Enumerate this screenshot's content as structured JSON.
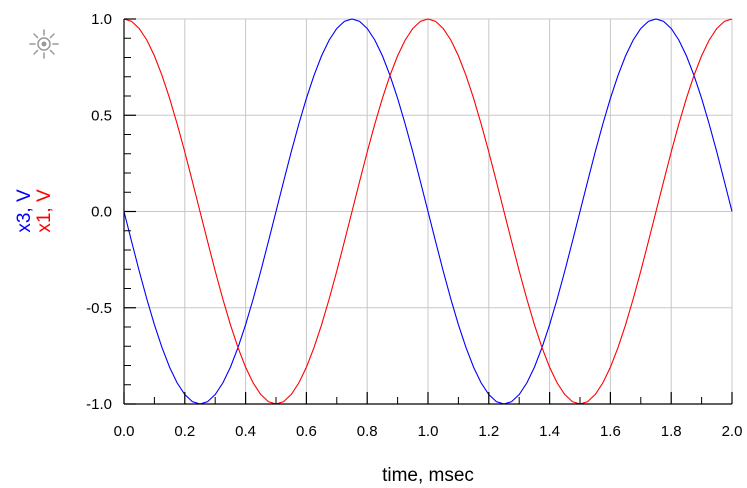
{
  "chart_data": {
    "type": "line",
    "xlabel": "time, msec",
    "ylabels": [
      {
        "text": "x3, V",
        "color": "#0000ff"
      },
      {
        "text": "x1, V",
        "color": "#ff0000"
      }
    ],
    "xlim": [
      0.0,
      2.0
    ],
    "ylim": [
      -1.0,
      1.0
    ],
    "xticks": [
      "0.0",
      "0.2",
      "0.4",
      "0.6",
      "0.8",
      "1.0",
      "1.2",
      "1.4",
      "1.6",
      "1.8",
      "2.0"
    ],
    "xtick_values": [
      0.0,
      0.2,
      0.4,
      0.6,
      0.8,
      1.0,
      1.2,
      1.4,
      1.6,
      1.8,
      2.0
    ],
    "yticks": [
      "-1.0",
      "-0.5",
      "0.0",
      "0.5",
      "1.0"
    ],
    "ytick_values": [
      -1.0,
      -0.5,
      0.0,
      0.5,
      1.0
    ],
    "grid": true,
    "series": [
      {
        "name": "x3",
        "color": "#0000ff",
        "x": [
          0.0,
          0.025,
          0.05,
          0.075,
          0.1,
          0.125,
          0.15,
          0.175,
          0.2,
          0.225,
          0.25,
          0.275,
          0.3,
          0.325,
          0.35,
          0.375,
          0.4,
          0.425,
          0.45,
          0.475,
          0.5,
          0.525,
          0.55,
          0.575,
          0.6,
          0.625,
          0.65,
          0.675,
          0.7,
          0.725,
          0.75,
          0.775,
          0.8,
          0.825,
          0.85,
          0.875,
          0.9,
          0.925,
          0.95,
          0.975,
          1.0,
          1.025,
          1.05,
          1.075,
          1.1,
          1.125,
          1.15,
          1.175,
          1.2,
          1.225,
          1.25,
          1.275,
          1.3,
          1.325,
          1.35,
          1.375,
          1.4,
          1.425,
          1.45,
          1.475,
          1.5,
          1.525,
          1.55,
          1.575,
          1.6,
          1.625,
          1.65,
          1.675,
          1.7,
          1.725,
          1.75,
          1.775,
          1.8,
          1.825,
          1.85,
          1.875,
          1.9,
          1.925,
          1.95,
          1.975,
          2.0
        ],
        "y": [
          0.0,
          -0.156,
          -0.309,
          -0.454,
          -0.588,
          -0.707,
          -0.809,
          -0.891,
          -0.951,
          -0.988,
          -1.0,
          -0.988,
          -0.951,
          -0.891,
          -0.809,
          -0.707,
          -0.588,
          -0.454,
          -0.309,
          -0.156,
          0.0,
          0.156,
          0.309,
          0.454,
          0.588,
          0.707,
          0.809,
          0.891,
          0.951,
          0.988,
          1.0,
          0.988,
          0.951,
          0.891,
          0.809,
          0.707,
          0.588,
          0.454,
          0.309,
          0.156,
          0.0,
          -0.156,
          -0.309,
          -0.454,
          -0.588,
          -0.707,
          -0.809,
          -0.891,
          -0.951,
          -0.988,
          -1.0,
          -0.988,
          -0.951,
          -0.891,
          -0.809,
          -0.707,
          -0.588,
          -0.454,
          -0.309,
          -0.156,
          0.0,
          0.156,
          0.309,
          0.454,
          0.588,
          0.707,
          0.809,
          0.891,
          0.951,
          0.988,
          1.0,
          0.988,
          0.951,
          0.891,
          0.809,
          0.707,
          0.588,
          0.454,
          0.309,
          0.156,
          0.0
        ]
      },
      {
        "name": "x1",
        "color": "#ff0000",
        "x": [
          0.0,
          0.025,
          0.05,
          0.075,
          0.1,
          0.125,
          0.15,
          0.175,
          0.2,
          0.225,
          0.25,
          0.275,
          0.3,
          0.325,
          0.35,
          0.375,
          0.4,
          0.425,
          0.45,
          0.475,
          0.5,
          0.525,
          0.55,
          0.575,
          0.6,
          0.625,
          0.65,
          0.675,
          0.7,
          0.725,
          0.75,
          0.775,
          0.8,
          0.825,
          0.85,
          0.875,
          0.9,
          0.925,
          0.95,
          0.975,
          1.0,
          1.025,
          1.05,
          1.075,
          1.1,
          1.125,
          1.15,
          1.175,
          1.2,
          1.225,
          1.25,
          1.275,
          1.3,
          1.325,
          1.35,
          1.375,
          1.4,
          1.425,
          1.45,
          1.475,
          1.5,
          1.525,
          1.55,
          1.575,
          1.6,
          1.625,
          1.65,
          1.675,
          1.7,
          1.725,
          1.75,
          1.775,
          1.8,
          1.825,
          1.85,
          1.875,
          1.9,
          1.925,
          1.95,
          1.975,
          2.0
        ],
        "y": [
          1.0,
          0.988,
          0.951,
          0.891,
          0.809,
          0.707,
          0.588,
          0.454,
          0.309,
          0.156,
          0.0,
          -0.156,
          -0.309,
          -0.454,
          -0.588,
          -0.707,
          -0.809,
          -0.891,
          -0.951,
          -0.988,
          -1.0,
          -0.988,
          -0.951,
          -0.891,
          -0.809,
          -0.707,
          -0.588,
          -0.454,
          -0.309,
          -0.156,
          0.0,
          0.156,
          0.309,
          0.454,
          0.588,
          0.707,
          0.809,
          0.891,
          0.951,
          0.988,
          1.0,
          0.988,
          0.951,
          0.891,
          0.809,
          0.707,
          0.588,
          0.454,
          0.309,
          0.156,
          0.0,
          -0.156,
          -0.309,
          -0.454,
          -0.588,
          -0.707,
          -0.809,
          -0.891,
          -0.951,
          -0.988,
          -1.0,
          -0.988,
          -0.951,
          -0.891,
          -0.809,
          -0.707,
          -0.588,
          -0.454,
          -0.309,
          -0.156,
          0.0,
          0.156,
          0.309,
          0.454,
          0.588,
          0.707,
          0.809,
          0.891,
          0.951,
          0.988,
          1.0
        ]
      }
    ]
  },
  "toolbar": {
    "icon": "sun-marker-icon",
    "icon_color": "#999999"
  }
}
